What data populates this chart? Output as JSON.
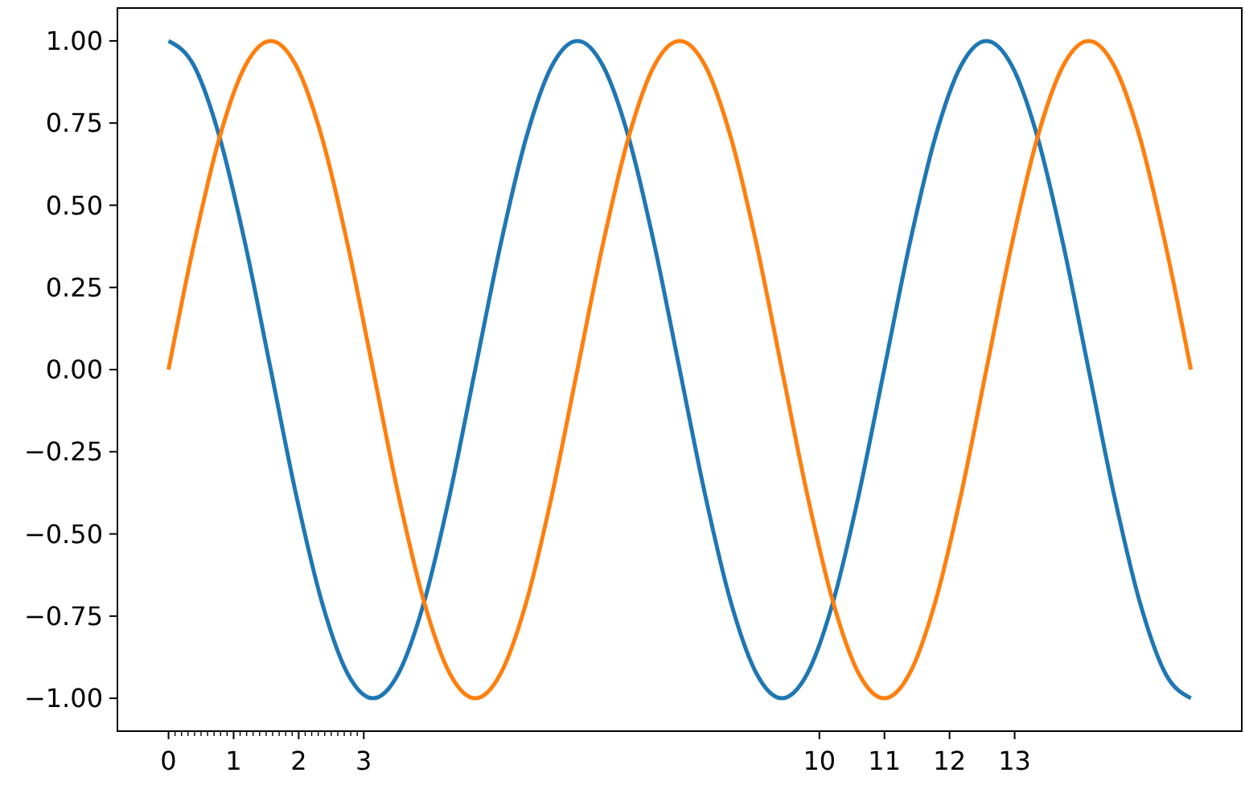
{
  "chart_data": {
    "type": "line",
    "x": [
      0,
      0.393,
      0.785,
      1.178,
      1.571,
      1.963,
      2.356,
      2.749,
      3.142,
      3.534,
      3.927,
      4.32,
      4.712,
      5.105,
      5.498,
      5.89,
      6.283,
      6.676,
      7.069,
      7.461,
      7.854,
      8.247,
      8.639,
      9.032,
      9.425,
      9.817,
      10.21,
      10.603,
      10.996,
      11.388,
      11.781,
      12.174,
      12.566,
      12.959,
      13.352,
      13.744,
      14.137,
      14.53,
      14.923,
      15.315,
      15.708
    ],
    "series": [
      {
        "color": "#1f77b4",
        "values": [
          1,
          0.924,
          0.707,
          0.383,
          0,
          -0.383,
          -0.707,
          -0.924,
          -1,
          -0.924,
          -0.707,
          -0.383,
          0,
          0.383,
          0.707,
          0.924,
          1,
          0.924,
          0.707,
          0.383,
          0,
          -0.383,
          -0.707,
          -0.924,
          -1,
          -0.924,
          -0.707,
          -0.383,
          0,
          0.383,
          0.707,
          0.924,
          1,
          0.924,
          0.707,
          0.383,
          0,
          -0.383,
          -0.707,
          -0.924,
          -1
        ]
      },
      {
        "color": "#ff7f0e",
        "values": [
          0,
          0.383,
          0.707,
          0.924,
          1,
          0.924,
          0.707,
          0.383,
          0,
          -0.383,
          -0.707,
          -0.924,
          -1,
          -0.924,
          -0.707,
          -0.383,
          0,
          0.383,
          0.707,
          0.924,
          1,
          0.924,
          0.707,
          0.383,
          0,
          -0.383,
          -0.707,
          -0.924,
          -1,
          -0.924,
          -0.707,
          -0.383,
          0,
          0.383,
          0.707,
          0.924,
          1,
          0.924,
          0.707,
          0.383,
          0
        ]
      }
    ],
    "xlim": [
      -0.785,
      16.49
    ],
    "xticks": [
      0,
      {
        "value": 0.1,
        "label": null
      },
      {
        "value": 0.2,
        "label": null
      },
      {
        "value": 0.3,
        "label": null
      },
      {
        "value": 0.4,
        "label": null
      },
      {
        "value": 0.5,
        "label": null
      },
      {
        "value": 0.6,
        "label": null
      },
      {
        "value": 0.7,
        "label": null
      },
      {
        "value": 0.8,
        "label": null
      },
      {
        "value": 0.9,
        "label": null
      },
      1,
      {
        "value": 1.1,
        "label": null
      },
      {
        "value": 1.2,
        "label": null
      },
      {
        "value": 1.3,
        "label": null
      },
      {
        "value": 1.4,
        "label": null
      },
      {
        "value": 1.5,
        "label": null
      },
      {
        "value": 1.6,
        "label": null
      },
      {
        "value": 1.7,
        "label": null
      },
      {
        "value": 1.8,
        "label": null
      },
      {
        "value": 1.9,
        "label": null
      },
      2,
      {
        "value": 2.1,
        "label": null
      },
      {
        "value": 2.2,
        "label": null
      },
      {
        "value": 2.3,
        "label": null
      },
      {
        "value": 2.4,
        "label": null
      },
      {
        "value": 2.5,
        "label": null
      },
      {
        "value": 2.6,
        "label": null
      },
      {
        "value": 2.7,
        "label": null
      },
      {
        "value": 2.8,
        "label": null
      },
      {
        "value": 2.9,
        "label": null
      },
      3,
      10,
      11,
      12,
      13
    ],
    "ylim": [
      -1.1,
      1.1
    ],
    "yticks": [
      {
        "value": -1,
        "label": "−1.00"
      },
      {
        "value": -0.75,
        "label": "−0.75"
      },
      {
        "value": -0.5,
        "label": "−0.50"
      },
      {
        "value": -0.25,
        "label": "−0.25"
      },
      {
        "value": 0,
        "label": "0.00"
      },
      {
        "value": 0.25,
        "label": "0.25"
      },
      {
        "value": 0.5,
        "label": "0.50"
      },
      {
        "value": 0.75,
        "label": "0.75"
      },
      {
        "value": 1,
        "label": "1.00"
      }
    ],
    "line_style": "solid"
  }
}
